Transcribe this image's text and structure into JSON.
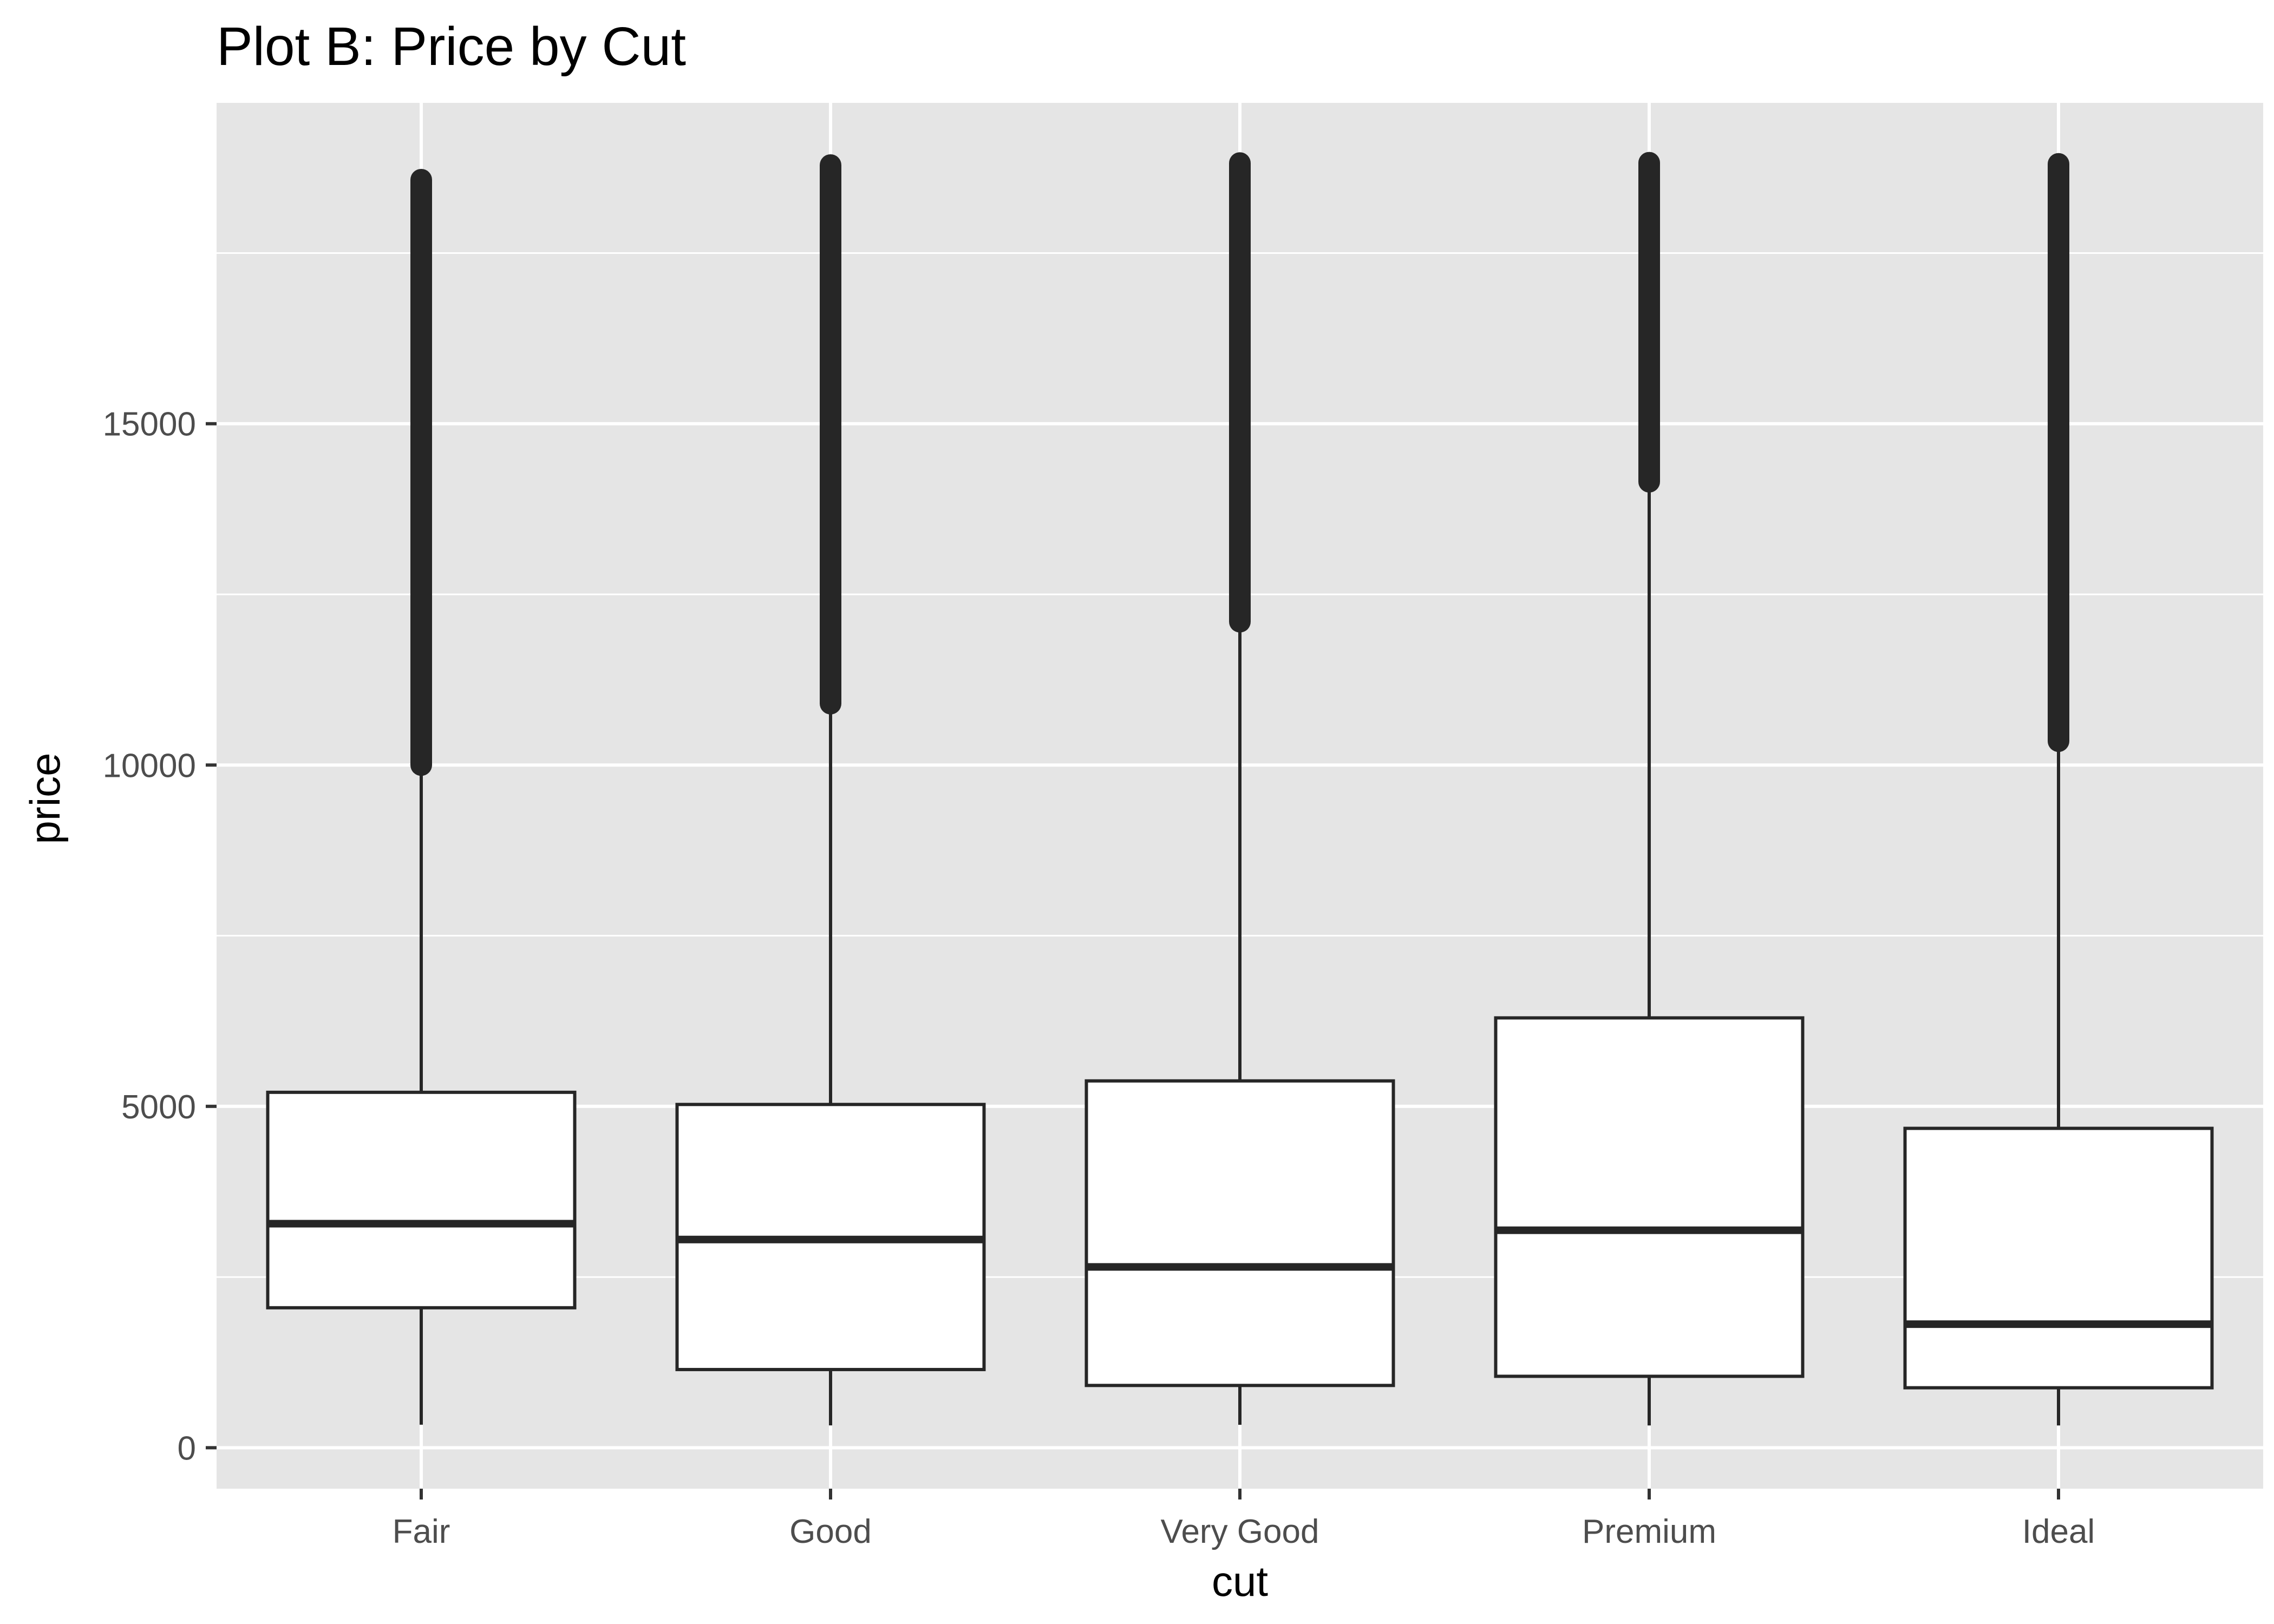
{
  "chart_data": {
    "type": "boxplot",
    "title": "Plot B: Price by Cut",
    "xlabel": "cut",
    "ylabel": "price",
    "categories": [
      "Fair",
      "Good",
      "Very Good",
      "Premium",
      "Ideal"
    ],
    "y_ticks": [
      0,
      5000,
      10000,
      15000
    ],
    "y_tick_labels": [
      "0",
      "5000",
      "10000",
      "15000"
    ],
    "ylim": [
      -600,
      19700
    ],
    "grid": true,
    "legend": "none",
    "boxes": [
      {
        "category": "Fair",
        "min": 337,
        "q1": 2050,
        "median": 3282,
        "q3": 5206,
        "whisker_high": 9936,
        "outlier_low": 10000,
        "outlier_high": 18574
      },
      {
        "category": "Good",
        "min": 327,
        "q1": 1145,
        "median": 3050,
        "q3": 5028,
        "whisker_high": 10850,
        "outlier_low": 10900,
        "outlier_high": 18788
      },
      {
        "category": "Very Good",
        "min": 336,
        "q1": 912,
        "median": 2648,
        "q3": 5373,
        "whisker_high": 12050,
        "outlier_low": 12100,
        "outlier_high": 18818
      },
      {
        "category": "Premium",
        "min": 326,
        "q1": 1046,
        "median": 3185,
        "q3": 6296,
        "whisker_high": 14100,
        "outlier_low": 14150,
        "outlier_high": 18823
      },
      {
        "category": "Ideal",
        "min": 326,
        "q1": 878,
        "median": 1810,
        "q3": 4678,
        "whisker_high": 10300,
        "outlier_low": 10350,
        "outlier_high": 18806
      }
    ],
    "colors": {
      "panel": "#e5e5e5",
      "grid": "#ffffff",
      "box_fill": "#ffffff",
      "box_line": "#262626",
      "tick_text": "#4d4d4d"
    }
  }
}
